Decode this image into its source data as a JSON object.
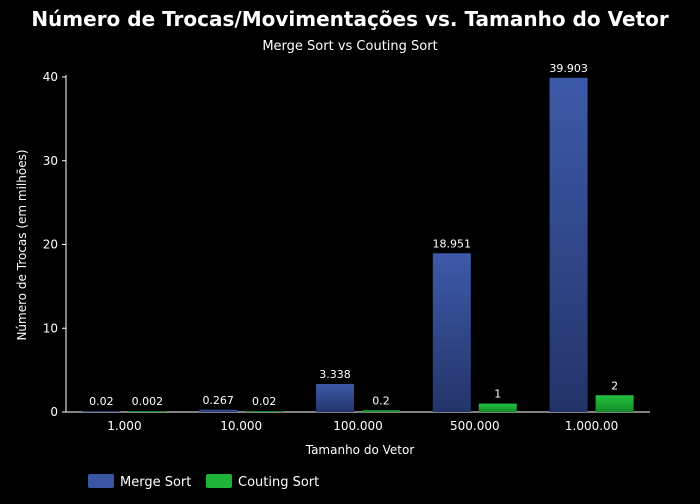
{
  "chart_data": {
    "type": "bar",
    "title": "Número de Trocas/Movimentações vs. Tamanho do Vetor",
    "subtitle": "Merge Sort vs Couting Sort",
    "xlabel": "Tamanho do Vetor",
    "ylabel": "Número de Trocas (em milhões)",
    "ylim": [
      0,
      40
    ],
    "yticks": [
      "0",
      "10",
      "20",
      "30",
      "40"
    ],
    "categories": [
      "1.000",
      "10.000",
      "100.000",
      "500.000",
      "1.000.00"
    ],
    "series": [
      {
        "name": "Merge Sort",
        "color": "#3a55a2",
        "values": [
          0.02,
          0.267,
          3.338,
          18.951,
          39.903
        ],
        "labels": [
          "0.02",
          "0.267",
          "3.338",
          "18.951",
          "39.903"
        ]
      },
      {
        "name": "Couting Sort",
        "color": "#1fb33a",
        "values": [
          0.002,
          0.02,
          0.2,
          1,
          2
        ],
        "labels": [
          "0.002",
          "0.02",
          "0.2",
          "1",
          "2"
        ]
      }
    ],
    "legend_position": "bottom-left",
    "grid": false
  }
}
